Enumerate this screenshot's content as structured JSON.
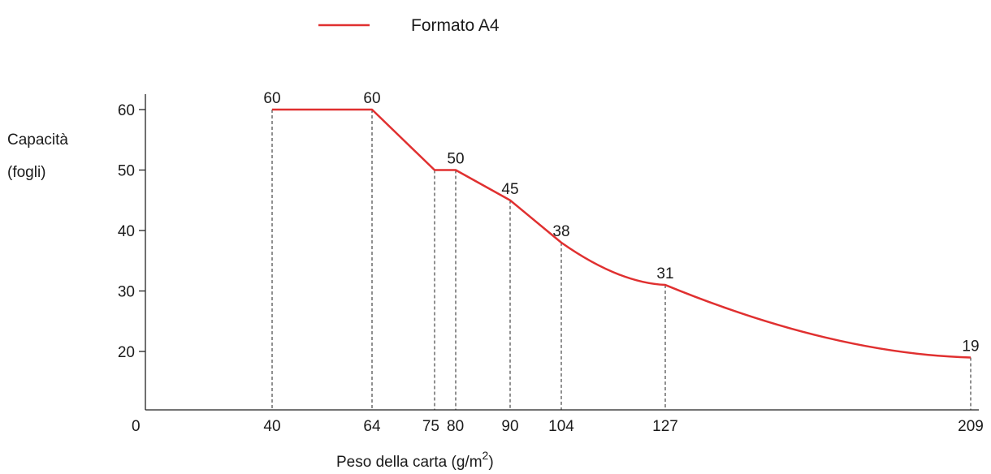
{
  "chart_data": {
    "type": "line",
    "legend": {
      "position": "top-center",
      "entries": [
        {
          "label": "Formato A4",
          "color": "#e03030"
        }
      ]
    },
    "xlabel": "Peso della carta (g/m",
    "xlabel_sup": "2",
    "xlabel_suffix": ")",
    "ylabel_line1": "Capacità",
    "ylabel_line2": "(fogli)",
    "y_origin_label": "0",
    "y_ticks": [
      20,
      30,
      40,
      50,
      60
    ],
    "ylim": [
      0,
      60
    ],
    "x_ticks": [
      {
        "label": "40",
        "value": 40
      },
      {
        "label": "64",
        "value": 64
      },
      {
        "label": "75",
        "value": 75
      },
      {
        "label": "80",
        "value": 80
      },
      {
        "label": "90",
        "value": 90
      },
      {
        "label": "104",
        "value": 104
      },
      {
        "label": "127",
        "value": 127
      },
      {
        "label": "209",
        "value": 209
      }
    ],
    "grid": false,
    "series": [
      {
        "name": "Formato A4",
        "color": "#e03030",
        "points": [
          {
            "x": 40,
            "y": 60,
            "label": "60"
          },
          {
            "x": 64,
            "y": 60,
            "label": "60"
          },
          {
            "x": 75,
            "y": 50,
            "label": ""
          },
          {
            "x": 80,
            "y": 50,
            "label": "50"
          },
          {
            "x": 90,
            "y": 45,
            "label": "45"
          },
          {
            "x": 104,
            "y": 38,
            "label": "38"
          },
          {
            "x": 127,
            "y": 31,
            "label": "31"
          },
          {
            "x": 209,
            "y": 19,
            "label": "19"
          }
        ]
      }
    ]
  }
}
